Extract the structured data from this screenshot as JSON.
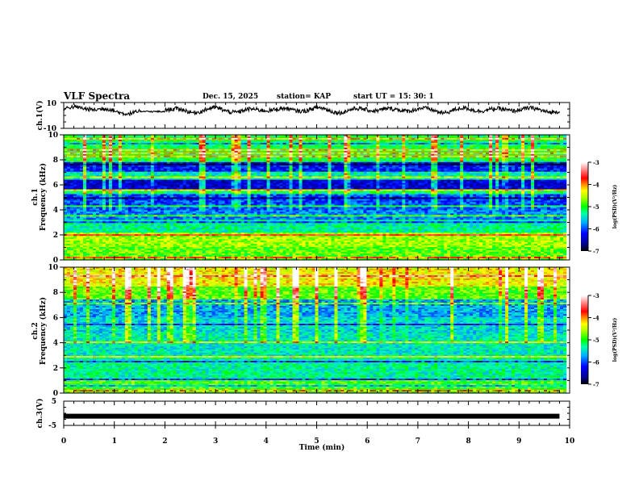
{
  "header": {
    "title": "VLF Spectra",
    "date": "Dec. 15, 2025",
    "station": "station= KAP",
    "start": "start  UT =   15: 30: 1"
  },
  "chart_data": [
    {
      "name": "ch1-waveform",
      "type": "line",
      "ylabel": "ch.1(V)",
      "ylim": [
        -10,
        10
      ],
      "yticks": [
        "10",
        "-10"
      ],
      "xlim": [
        0,
        10
      ],
      "description": "noisy oscillating voltage trace around ~4 V, amplitude roughly ±3 V",
      "x": [
        0,
        0.5,
        1.0,
        1.5,
        2.0,
        2.5,
        3.0,
        3.5,
        4.0,
        4.5,
        5.0,
        5.5,
        6.0,
        6.5,
        7.0,
        7.5,
        8.0,
        8.5,
        9.0,
        9.5,
        9.8
      ],
      "y": [
        5,
        6,
        3,
        2,
        5,
        3,
        5,
        3,
        5,
        4,
        5,
        3,
        5,
        4,
        5,
        3,
        5,
        4,
        5,
        4,
        3
      ]
    },
    {
      "name": "ch1-spectrogram",
      "type": "heatmap",
      "title": "ch.1",
      "ylabel": "Frequency (kHz)",
      "ylim": [
        0,
        10
      ],
      "yticks": [
        "0",
        "2",
        "4",
        "6",
        "8",
        "10"
      ],
      "xlim": [
        0,
        10
      ],
      "colorbar": {
        "label": "log(PSD)(V²/Hz)",
        "range": [
          -7,
          -3
        ],
        "ticks": [
          "-3",
          "-4",
          "-5",
          "-6",
          "-7"
        ]
      },
      "bands": [
        {
          "from": 0,
          "to": 1.0,
          "level": -4.8
        },
        {
          "from": 1.0,
          "to": 2.2,
          "level": -4.6
        },
        {
          "from": 2.2,
          "to": 3.2,
          "level": -5.3
        },
        {
          "from": 3.2,
          "to": 4.0,
          "level": -5.8
        },
        {
          "from": 4.0,
          "to": 5.2,
          "level": -6.0
        },
        {
          "from": 5.2,
          "to": 5.6,
          "level": -5.2
        },
        {
          "from": 5.6,
          "to": 6.4,
          "level": -6.4
        },
        {
          "from": 6.4,
          "to": 7.0,
          "level": -5.4
        },
        {
          "from": 7.0,
          "to": 7.8,
          "level": -6.2
        },
        {
          "from": 7.8,
          "to": 10,
          "level": -5.1
        }
      ]
    },
    {
      "name": "ch2-spectrogram",
      "type": "heatmap",
      "title": "ch.2",
      "ylabel": "Frequency (kHz)",
      "ylim": [
        0,
        10
      ],
      "yticks": [
        "0",
        "2",
        "4",
        "6",
        "8",
        "10"
      ],
      "xlim": [
        0,
        10
      ],
      "colorbar": {
        "label": "log(PSD)(V²/Hz)",
        "range": [
          -7,
          -3
        ],
        "ticks": [
          "-3",
          "-4",
          "-5",
          "-6",
          "-7"
        ]
      },
      "bands": [
        {
          "from": 0,
          "to": 1.0,
          "level": -4.9
        },
        {
          "from": 1.0,
          "to": 3.0,
          "level": -5.3
        },
        {
          "from": 3.0,
          "to": 4.8,
          "level": -5.4
        },
        {
          "from": 4.8,
          "to": 6.0,
          "level": -5.5
        },
        {
          "from": 6.0,
          "to": 7.5,
          "level": -5.7
        },
        {
          "from": 7.5,
          "to": 8.5,
          "level": -4.8
        },
        {
          "from": 8.5,
          "to": 10,
          "level": -4.3
        }
      ]
    },
    {
      "name": "ch3-waveform",
      "type": "line",
      "ylabel": "ch.3(V)",
      "ylim": [
        -5,
        5
      ],
      "yticks": [
        "5",
        "-5"
      ],
      "xlim": [
        0,
        10
      ],
      "xlabel": "Time (min)",
      "xticks": [
        "0",
        "1",
        "2",
        "3",
        "4",
        "5",
        "6",
        "7",
        "8",
        "9",
        "10"
      ],
      "x": [
        0,
        9.8
      ],
      "y": [
        -1.2,
        -1.2
      ]
    }
  ]
}
